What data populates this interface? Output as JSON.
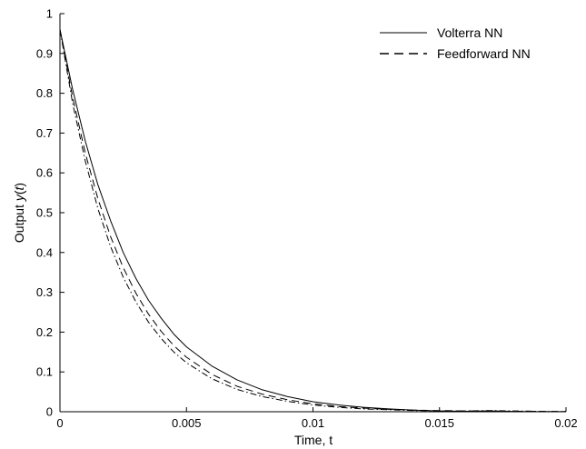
{
  "chart_data": {
    "type": "line",
    "xlabel": "Time, t",
    "ylabel_prefix": "Output ",
    "ylabel_var": "y",
    "ylabel_paren_open": "(",
    "ylabel_arg": "t",
    "ylabel_paren_close": ")",
    "xlim": [
      0,
      0.02
    ],
    "ylim": [
      0,
      1
    ],
    "x_ticks": [
      0,
      0.005,
      0.01,
      0.015,
      0.02
    ],
    "x_tick_labels": [
      "0",
      "0.005",
      "0.01",
      "0.015",
      "0.02"
    ],
    "y_ticks": [
      0,
      0.1,
      0.2,
      0.3,
      0.4,
      0.5,
      0.6,
      0.7,
      0.8,
      0.9,
      1
    ],
    "y_tick_labels": [
      "0",
      "0.1",
      "0.2",
      "0.3",
      "0.4",
      "0.5",
      "0.6",
      "0.7",
      "0.8",
      "0.9",
      "1"
    ],
    "grid": false,
    "legend_position": "top-right",
    "x": [
      0,
      0.0005,
      0.001,
      0.0015,
      0.002,
      0.0025,
      0.003,
      0.0035,
      0.004,
      0.0045,
      0.005,
      0.006,
      0.007,
      0.008,
      0.009,
      0.01,
      0.011,
      0.012,
      0.013,
      0.014,
      0.015,
      0.016,
      0.017,
      0.018,
      0.019,
      0.02
    ],
    "series": [
      {
        "name": "Volterra NN",
        "style": "solid",
        "values": [
          0.96,
          0.81,
          0.68,
          0.57,
          0.48,
          0.4,
          0.335,
          0.28,
          0.235,
          0.195,
          0.163,
          0.115,
          0.08,
          0.055,
          0.038,
          0.025,
          0.017,
          0.011,
          0.007,
          0.004,
          0.002,
          0.001,
          0.001,
          0.0005,
          0.0003,
          0.0002
        ]
      },
      {
        "name": "Feedforward NN",
        "style": "dashed",
        "values": [
          0.96,
          0.79,
          0.65,
          0.535,
          0.44,
          0.362,
          0.298,
          0.245,
          0.202,
          0.166,
          0.137,
          0.094,
          0.064,
          0.044,
          0.03,
          0.02,
          0.013,
          0.009,
          0.006,
          0.004,
          0.003,
          0.002,
          0.002,
          0.001,
          0.001,
          0.0005
        ]
      },
      {
        "name": "",
        "style": "dashdot",
        "values": [
          0.96,
          0.775,
          0.63,
          0.51,
          0.415,
          0.338,
          0.276,
          0.225,
          0.184,
          0.15,
          0.123,
          0.083,
          0.056,
          0.038,
          0.026,
          0.017,
          0.011,
          0.007,
          0.005,
          0.003,
          0.002,
          0.002,
          0.003,
          0.002,
          0.001,
          0.0005
        ]
      }
    ]
  }
}
